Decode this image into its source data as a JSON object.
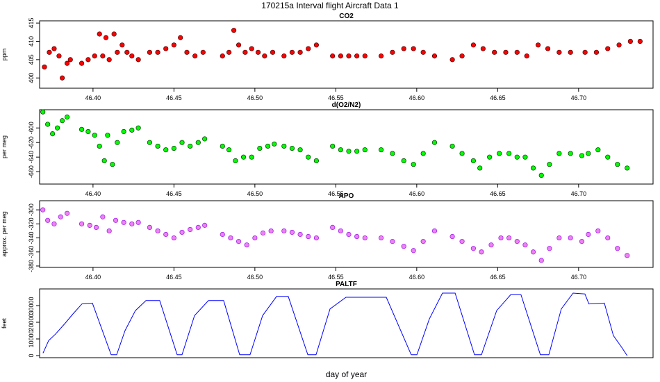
{
  "title": "170215a   Interval flight Aircraft Data 1",
  "chart_data": [
    {
      "type": "scatter",
      "title": "CO2",
      "ylabel": "ppm",
      "color": "#ff0000",
      "edge": "#5a0000",
      "xlim": [
        46.367,
        46.746
      ],
      "ylim": [
        397.2,
        415.6
      ],
      "yticks": [
        400,
        405,
        410,
        415
      ],
      "xticks": [
        {
          "value": 46.4,
          "label": "46.40"
        },
        {
          "value": 46.45,
          "label": "46.45"
        },
        {
          "value": 46.5,
          "label": "46.50"
        },
        {
          "value": 46.55,
          "label": "46.55"
        },
        {
          "value": 46.6,
          "label": "46.60"
        },
        {
          "value": 46.65,
          "label": "46.65"
        },
        {
          "value": 46.7,
          "label": "46.70"
        }
      ],
      "x": [
        46.37,
        46.373,
        46.376,
        46.379,
        46.381,
        46.384,
        46.386,
        46.393,
        46.397,
        46.401,
        46.404,
        46.406,
        46.408,
        46.41,
        46.413,
        46.415,
        46.418,
        46.421,
        46.424,
        46.428,
        46.435,
        46.44,
        46.445,
        46.45,
        46.454,
        46.458,
        46.463,
        46.468,
        46.48,
        46.484,
        46.487,
        46.49,
        46.494,
        46.498,
        46.502,
        46.506,
        46.511,
        46.518,
        46.523,
        46.528,
        46.533,
        46.538,
        46.548,
        46.553,
        46.558,
        46.563,
        46.568,
        46.578,
        46.585,
        46.592,
        46.598,
        46.604,
        46.611,
        46.622,
        46.628,
        46.635,
        46.641,
        46.648,
        46.655,
        46.662,
        46.668,
        46.675,
        46.681,
        46.688,
        46.695,
        46.704,
        46.711,
        46.718,
        46.725,
        46.732,
        46.738
      ],
      "values": [
        403,
        407,
        408,
        406,
        400,
        404,
        405,
        404,
        405,
        406,
        412,
        406,
        411,
        405,
        412,
        407,
        409,
        407,
        406,
        405,
        407,
        407,
        408,
        409,
        411,
        407,
        406,
        407,
        406,
        407,
        413,
        409,
        407,
        408,
        407,
        406,
        407,
        406,
        407,
        407,
        408,
        409,
        406,
        406,
        406,
        406,
        406,
        406,
        407,
        408,
        408,
        407,
        406,
        405,
        406,
        409,
        408,
        407,
        407,
        407,
        406,
        409,
        408,
        407,
        407,
        407,
        407,
        408,
        409,
        410,
        410
      ]
    },
    {
      "type": "scatter",
      "title": "d(O2/N2)",
      "ylabel": "per meg",
      "color": "#00ff00",
      "edge": "#004d00",
      "xlim": [
        46.367,
        46.746
      ],
      "ylim": [
        -677,
        -575
      ],
      "yticks": [
        -600,
        -620,
        -640,
        -660
      ],
      "xticks": [
        {
          "value": 46.4,
          "label": "46.40"
        },
        {
          "value": 46.45,
          "label": "46.45"
        },
        {
          "value": 46.5,
          "label": "46.50"
        },
        {
          "value": 46.55,
          "label": "46.55"
        },
        {
          "value": 46.6,
          "label": "46.60"
        },
        {
          "value": 46.65,
          "label": "46.65"
        },
        {
          "value": 46.7,
          "label": "46.70"
        }
      ],
      "x": [
        46.369,
        46.372,
        46.375,
        46.378,
        46.381,
        46.384,
        46.393,
        46.397,
        46.401,
        46.404,
        46.407,
        46.409,
        46.412,
        46.415,
        46.419,
        46.424,
        46.428,
        46.435,
        46.44,
        46.445,
        46.45,
        46.455,
        46.46,
        46.465,
        46.469,
        46.48,
        46.484,
        46.488,
        46.493,
        46.498,
        46.503,
        46.508,
        46.512,
        46.518,
        46.523,
        46.528,
        46.533,
        46.538,
        46.548,
        46.553,
        46.558,
        46.563,
        46.568,
        46.578,
        46.585,
        46.592,
        46.598,
        46.604,
        46.611,
        46.622,
        46.628,
        46.635,
        46.639,
        46.645,
        46.651,
        46.657,
        46.662,
        46.667,
        46.672,
        46.677,
        46.682,
        46.688,
        46.695,
        46.702,
        46.706,
        46.712,
        46.718,
        46.724,
        46.73
      ],
      "values": [
        -578,
        -595,
        -608,
        -600,
        -590,
        -585,
        -602,
        -605,
        -610,
        -625,
        -645,
        -610,
        -650,
        -620,
        -605,
        -603,
        -600,
        -620,
        -625,
        -630,
        -628,
        -620,
        -625,
        -620,
        -615,
        -625,
        -630,
        -645,
        -640,
        -640,
        -628,
        -625,
        -622,
        -625,
        -628,
        -630,
        -640,
        -645,
        -625,
        -630,
        -632,
        -632,
        -630,
        -630,
        -635,
        -645,
        -650,
        -635,
        -620,
        -625,
        -635,
        -645,
        -655,
        -640,
        -635,
        -635,
        -640,
        -640,
        -655,
        -665,
        -650,
        -635,
        -635,
        -638,
        -635,
        -630,
        -640,
        -650,
        -655
      ]
    },
    {
      "type": "scatter",
      "title": "APO",
      "ylabel": "approx. per meg",
      "color": "#ee82ee",
      "edge": "#a020f0",
      "xlim": [
        46.367,
        46.746
      ],
      "ylim": [
        -382,
        -287
      ],
      "yticks": [
        -300,
        -320,
        -340,
        -360,
        -380
      ],
      "xticks": [
        {
          "value": 46.4,
          "label": "46.40"
        },
        {
          "value": 46.45,
          "label": "46.45"
        },
        {
          "value": 46.5,
          "label": "46.50"
        },
        {
          "value": 46.55,
          "label": "46.55"
        },
        {
          "value": 46.6,
          "label": "46.60"
        },
        {
          "value": 46.65,
          "label": "46.65"
        },
        {
          "value": 46.7,
          "label": "46.70"
        }
      ],
      "x": [
        46.369,
        46.372,
        46.376,
        46.38,
        46.384,
        46.393,
        46.398,
        46.402,
        46.406,
        46.41,
        46.414,
        46.419,
        46.424,
        46.428,
        46.435,
        46.44,
        46.445,
        46.45,
        46.455,
        46.46,
        46.465,
        46.469,
        46.48,
        46.485,
        46.49,
        46.495,
        46.5,
        46.505,
        46.51,
        46.518,
        46.523,
        46.528,
        46.533,
        46.538,
        46.548,
        46.553,
        46.558,
        46.563,
        46.568,
        46.578,
        46.585,
        46.592,
        46.598,
        46.604,
        46.611,
        46.622,
        46.628,
        46.635,
        46.64,
        46.646,
        46.652,
        46.657,
        46.662,
        46.667,
        46.672,
        46.677,
        46.682,
        46.688,
        46.695,
        46.702,
        46.706,
        46.712,
        46.718,
        46.724,
        46.73
      ],
      "values": [
        -300,
        -315,
        -320,
        -310,
        -305,
        -320,
        -322,
        -325,
        -310,
        -330,
        -315,
        -318,
        -320,
        -318,
        -325,
        -330,
        -335,
        -340,
        -332,
        -328,
        -325,
        -322,
        -335,
        -340,
        -345,
        -350,
        -340,
        -333,
        -330,
        -330,
        -332,
        -335,
        -338,
        -340,
        -325,
        -330,
        -335,
        -338,
        -340,
        -340,
        -345,
        -352,
        -358,
        -345,
        -330,
        -338,
        -345,
        -355,
        -360,
        -350,
        -340,
        -340,
        -345,
        -350,
        -360,
        -372,
        -355,
        -340,
        -340,
        -345,
        -335,
        -330,
        -340,
        -355,
        -365
      ]
    },
    {
      "type": "line",
      "title": "PALTF",
      "ylabel": "feet",
      "xlabel": "day of year",
      "color": "#0000ff",
      "xlim": [
        46.367,
        46.746
      ],
      "ylim": [
        -1250,
        40000
      ],
      "yticks": [
        0,
        10000,
        20000,
        30000
      ],
      "x": [
        46.3691,
        46.3726,
        46.3769,
        46.3833,
        46.3876,
        46.3932,
        46.3996,
        46.4112,
        46.4146,
        46.4198,
        46.4262,
        46.4327,
        46.4412,
        46.452,
        46.455,
        46.4627,
        46.4713,
        46.4807,
        46.4906,
        46.497,
        46.5048,
        46.5134,
        46.5206,
        46.5327,
        46.5378,
        46.5464,
        46.5563,
        46.5812,
        46.5966,
        46.6001,
        46.6078,
        46.6159,
        46.6237,
        46.6357,
        46.64,
        46.6494,
        46.658,
        46.6644,
        46.6764,
        46.6816,
        46.6893,
        46.6966,
        46.7039,
        46.7064,
        46.7159,
        46.7215,
        46.7266,
        46.73
      ],
      "values": [
        1500,
        9000,
        13000,
        20000,
        25000,
        31000,
        31500,
        500,
        500,
        15000,
        27000,
        33000,
        33000,
        500,
        500,
        24000,
        33000,
        33000,
        500,
        500,
        24000,
        35500,
        35500,
        500,
        500,
        28000,
        35000,
        35000,
        500,
        500,
        22000,
        37500,
        37500,
        500,
        500,
        27000,
        36500,
        36500,
        500,
        500,
        28000,
        37500,
        37000,
        31000,
        31500,
        12000,
        5000,
        0
      ]
    }
  ]
}
